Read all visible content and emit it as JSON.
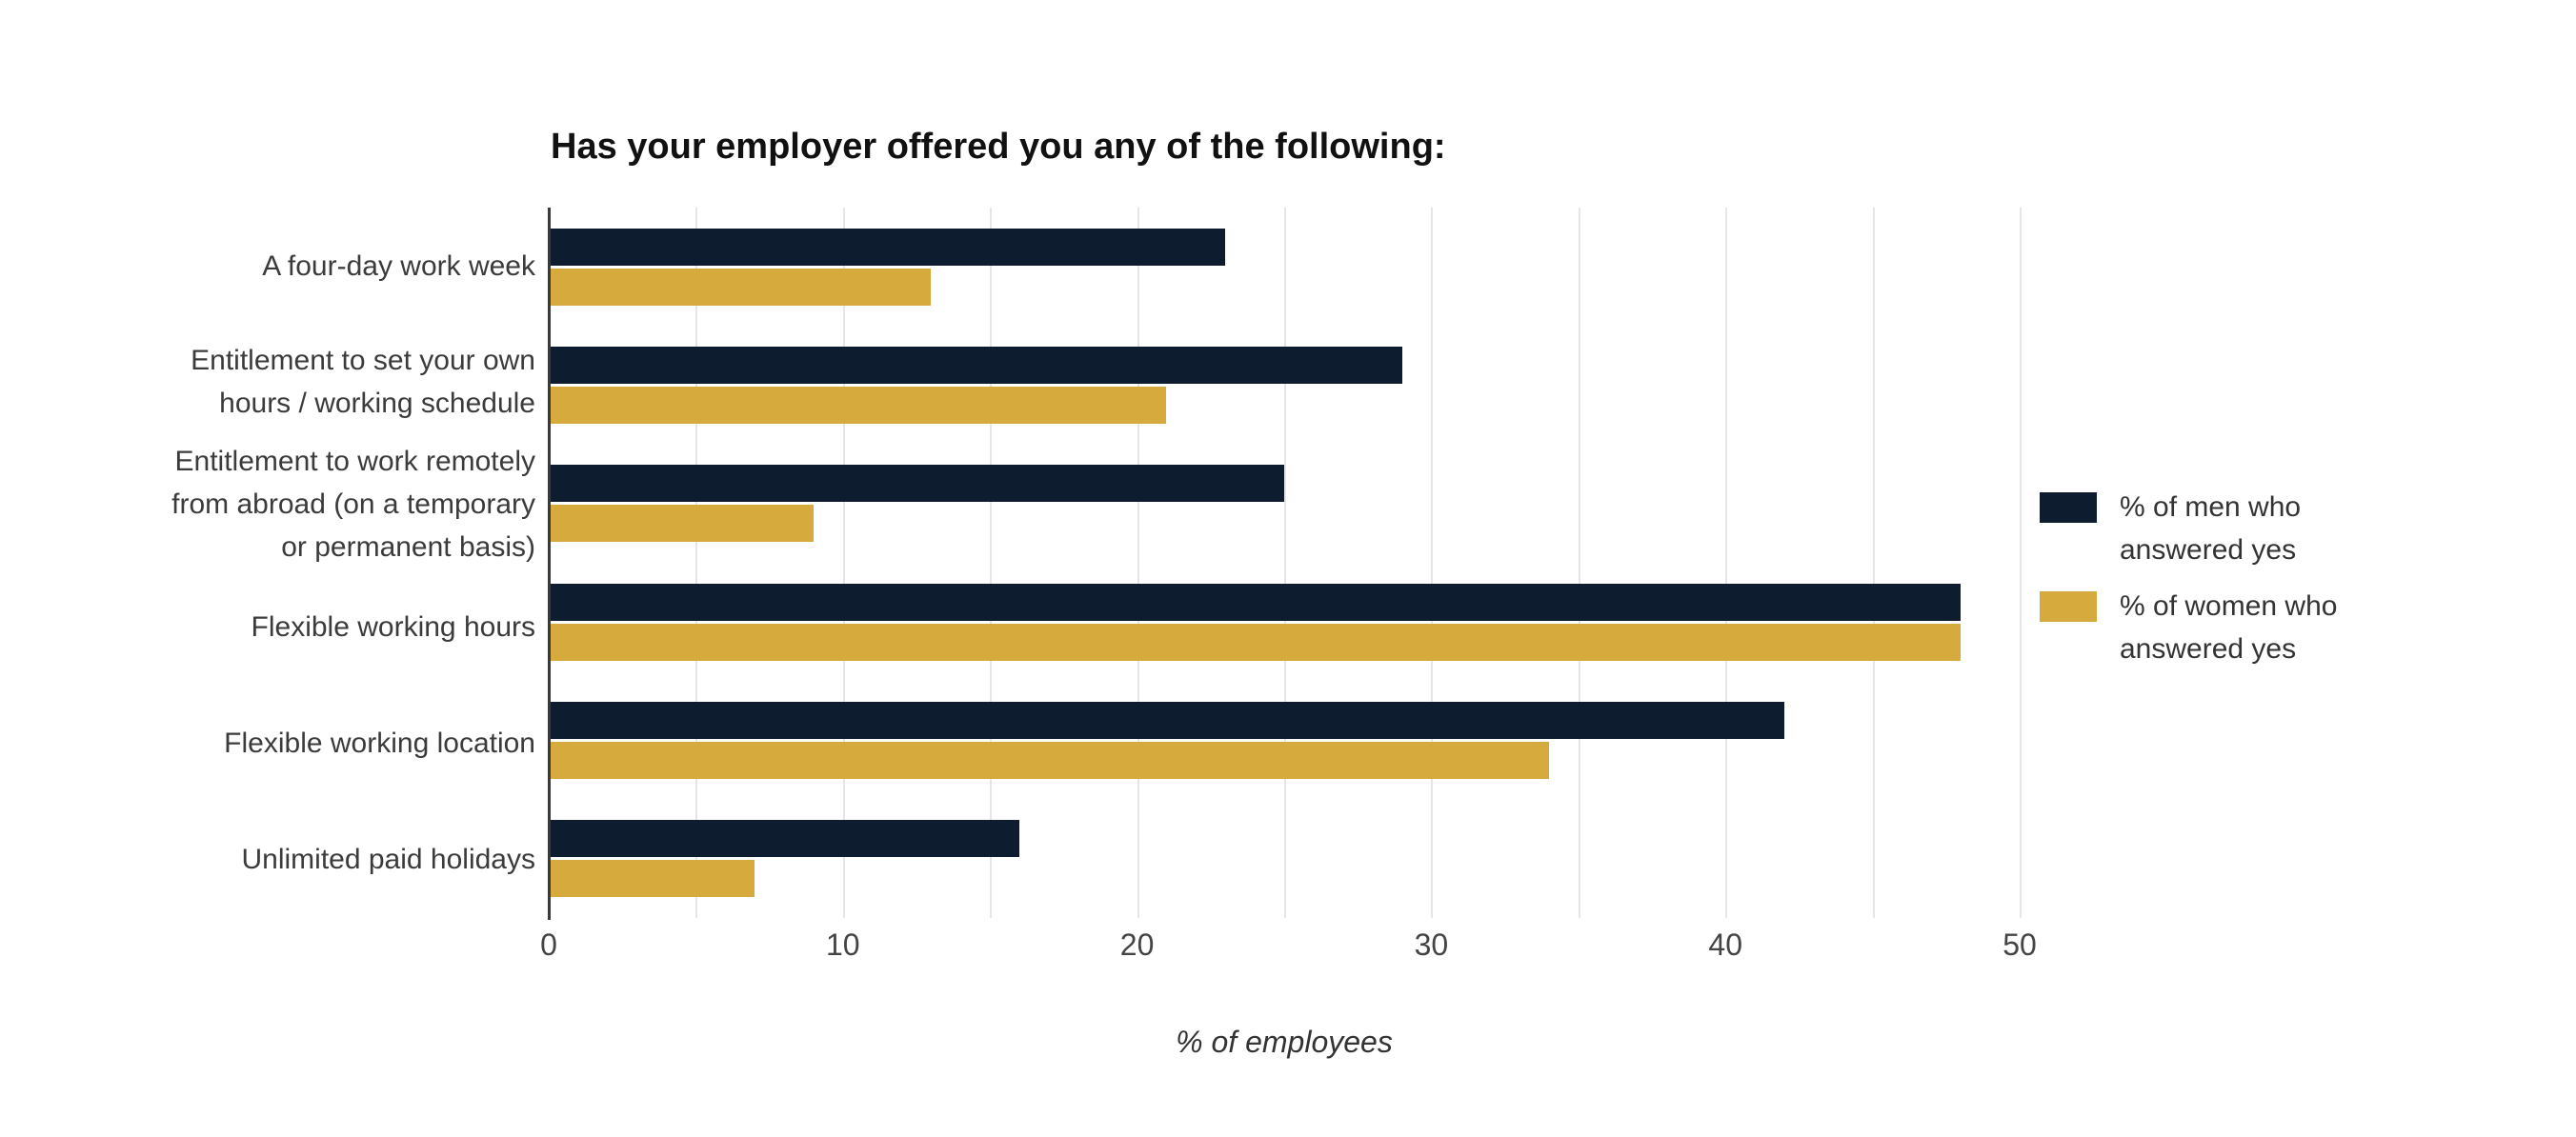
{
  "chart_data": {
    "type": "bar",
    "orientation": "horizontal",
    "title": "Has your employer offered you any of the following:",
    "xlabel": "% of employees",
    "categories": [
      "A four-day work week",
      "Entitlement to set your own\nhours / working schedule",
      "Entitlement to work remotely\nfrom abroad (on a temporary\nor permanent basis)",
      "Flexible working hours",
      "Flexible working location",
      "Unlimited paid holidays"
    ],
    "series": [
      {
        "name": "% of men who\nanswered yes",
        "color": "#0d1c2e",
        "values": [
          23,
          29,
          25,
          48,
          42,
          16
        ]
      },
      {
        "name": "% of women who\nanswered yes",
        "color": "#d6aa3c",
        "values": [
          13,
          21,
          9,
          48,
          34,
          7
        ]
      }
    ],
    "xlim": [
      0,
      50
    ],
    "x_ticks": [
      0,
      10,
      20,
      30,
      40,
      50
    ],
    "gridline_step": 5,
    "grid": true,
    "legend_position": "middle-right",
    "colors": {
      "gridline": "#e6e6e6",
      "axis_line": "#3a3a3a",
      "tick_label": "#444444",
      "category_label": "#3b3b3b",
      "title": "#111111"
    }
  }
}
